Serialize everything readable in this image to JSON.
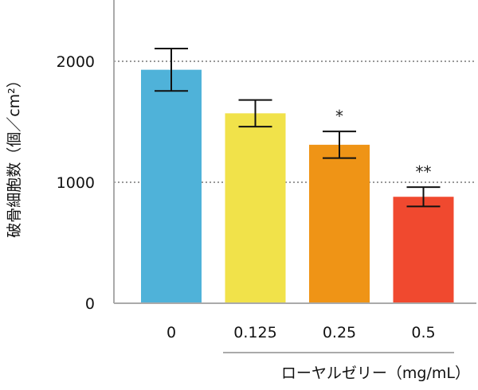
{
  "chart_data": {
    "type": "bar",
    "title": "",
    "xlabel": "ローヤルゼリー（mg/mL）",
    "ylabel": "破骨細胞数（個／cm²）",
    "categories": [
      "0",
      "0.125",
      "0.25",
      "0.5"
    ],
    "values": [
      1930,
      1570,
      1310,
      880
    ],
    "error": [
      175,
      110,
      110,
      80
    ],
    "annotations": [
      "",
      "",
      "*",
      "**"
    ],
    "colors": [
      "#4fb2d9",
      "#f1e24a",
      "#ef9416",
      "#f0492f"
    ],
    "yticks": [
      0,
      1000,
      2000
    ],
    "ylim": [
      0,
      2500
    ],
    "grid": "dotted at 1000 and 2000",
    "legend": "none"
  }
}
